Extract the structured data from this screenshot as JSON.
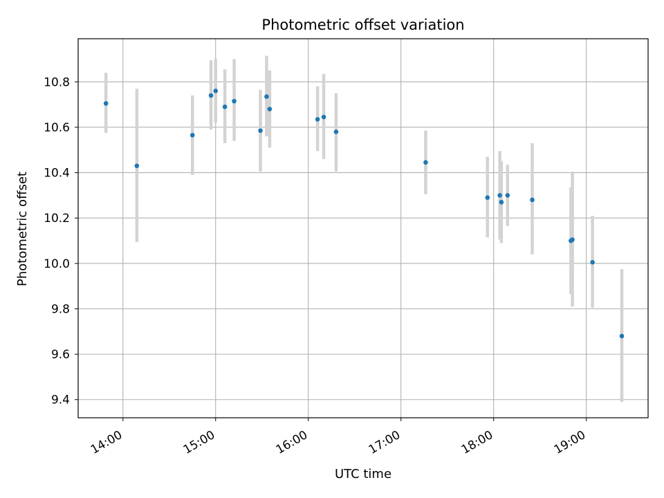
{
  "chart_data": {
    "type": "scatter",
    "title": "Photometric offset variation",
    "xlabel": "UTC time",
    "ylabel": "Photometric offset",
    "x_ticks": [
      "14:00",
      "15:00",
      "16:00",
      "17:00",
      "18:00",
      "19:00"
    ],
    "x_tick_hours": [
      14,
      15,
      16,
      17,
      18,
      19
    ],
    "y_ticks": [
      "9.4",
      "9.6",
      "9.8",
      "10.0",
      "10.2",
      "10.4",
      "10.6",
      "10.8"
    ],
    "y_tick_values": [
      9.4,
      9.6,
      9.8,
      10.0,
      10.2,
      10.4,
      10.6,
      10.8
    ],
    "xlim": [
      "13:31",
      "19:40"
    ],
    "ylim": [
      9.32,
      10.99
    ],
    "grid": true,
    "series": [
      {
        "marker_color": "#1f77b4",
        "errorbar_color": "#d3d3d3",
        "points": [
          {
            "x": "13:49",
            "y": 10.705,
            "ylow": 10.575,
            "yhigh": 10.84
          },
          {
            "x": "14:09",
            "y": 10.43,
            "ylow": 10.095,
            "yhigh": 10.77
          },
          {
            "x": "14:45",
            "y": 10.565,
            "ylow": 10.39,
            "yhigh": 10.74
          },
          {
            "x": "14:57",
            "y": 10.74,
            "ylow": 10.59,
            "yhigh": 10.895
          },
          {
            "x": "15:00",
            "y": 10.76,
            "ylow": 10.62,
            "yhigh": 10.9
          },
          {
            "x": "15:06",
            "y": 10.69,
            "ylow": 10.53,
            "yhigh": 10.855
          },
          {
            "x": "15:12",
            "y": 10.715,
            "ylow": 10.54,
            "yhigh": 10.9
          },
          {
            "x": "15:29",
            "y": 10.585,
            "ylow": 10.405,
            "yhigh": 10.765
          },
          {
            "x": "15:33",
            "y": 10.735,
            "ylow": 10.56,
            "yhigh": 10.915
          },
          {
            "x": "15:35",
            "y": 10.68,
            "ylow": 10.51,
            "yhigh": 10.85
          },
          {
            "x": "16:06",
            "y": 10.635,
            "ylow": 10.495,
            "yhigh": 10.78
          },
          {
            "x": "16:10",
            "y": 10.645,
            "ylow": 10.46,
            "yhigh": 10.835
          },
          {
            "x": "16:18",
            "y": 10.58,
            "ylow": 10.405,
            "yhigh": 10.75
          },
          {
            "x": "17:16",
            "y": 10.445,
            "ylow": 10.305,
            "yhigh": 10.585
          },
          {
            "x": "17:56",
            "y": 10.29,
            "ylow": 10.115,
            "yhigh": 10.47
          },
          {
            "x": "18:04",
            "y": 10.3,
            "ylow": 10.105,
            "yhigh": 10.495
          },
          {
            "x": "18:05",
            "y": 10.27,
            "ylow": 10.09,
            "yhigh": 10.45
          },
          {
            "x": "18:09",
            "y": 10.3,
            "ylow": 10.165,
            "yhigh": 10.435
          },
          {
            "x": "18:25",
            "y": 10.28,
            "ylow": 10.04,
            "yhigh": 10.53
          },
          {
            "x": "18:50",
            "y": 10.1,
            "ylow": 9.865,
            "yhigh": 10.335
          },
          {
            "x": "18:51",
            "y": 10.105,
            "ylow": 9.81,
            "yhigh": 10.405
          },
          {
            "x": "19:04",
            "y": 10.005,
            "ylow": 9.805,
            "yhigh": 10.21
          },
          {
            "x": "19:23",
            "y": 9.68,
            "ylow": 9.39,
            "yhigh": 9.975
          }
        ]
      }
    ]
  }
}
